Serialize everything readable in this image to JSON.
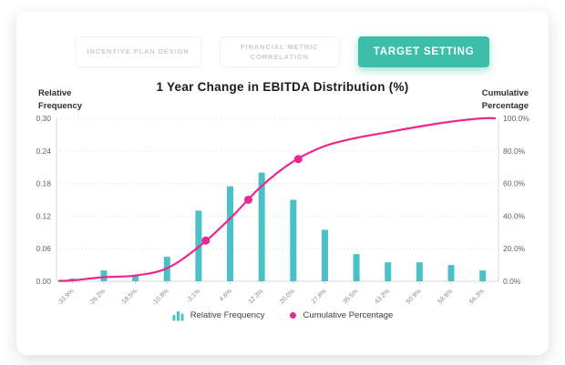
{
  "tabs": [
    {
      "label": "INCENTIVE PLAN DESIGN",
      "active": false
    },
    {
      "label": "FINANCIAL METRIC CORRELATION",
      "active": false
    },
    {
      "label": "TARGET SETTING",
      "active": true
    }
  ],
  "title": "1 Year Change in EBITDA Distribution (%)",
  "axis_titles": {
    "left_line1": "Relative",
    "left_line2": "Frequency",
    "right_line1": "Cumulative",
    "right_line2": "Percentage"
  },
  "legend": {
    "items": [
      {
        "icon": "bar-chart-icon",
        "label": "Relative Frequency"
      },
      {
        "icon": "dot-icon",
        "label": "Cumulative Percentage"
      }
    ]
  },
  "colors": {
    "bar": "#4bc0c5",
    "line": "#ec268f",
    "active_tab": "#3dbea9",
    "inactive_tab_text": "#c7ccd2",
    "axis": "#d6d7da",
    "grid": "#e4e5e9",
    "tick_text": "#5d6269",
    "xtick_text": "#82878f",
    "title_text": "#1a1b1e"
  },
  "chart_data": {
    "type": "bar+line (histogram with cumulative percentage)",
    "title": "1 Year Change in EBITDA Distribution (%)",
    "categories": [
      "-33.9%",
      "-26.2%",
      "-18.5%",
      "-10.8%",
      "-3.1%",
      "4.6%",
      "12.3%",
      "20.0%",
      "27.8%",
      "35.5%",
      "43.2%",
      "50.9%",
      "58.6%",
      "66.3%"
    ],
    "series": [
      {
        "name": "Relative Frequency",
        "type": "bar",
        "axis": "left",
        "values": [
          0.005,
          0.02,
          0.01,
          0.045,
          0.13,
          0.175,
          0.2,
          0.15,
          0.095,
          0.05,
          0.035,
          0.035,
          0.03,
          0.02
        ]
      },
      {
        "name": "Cumulative Percentage",
        "type": "line",
        "axis": "right",
        "values_percent": [
          0.5,
          2.5,
          3.5,
          8,
          21,
          38.5,
          58.5,
          73.5,
          83,
          88,
          91.5,
          95,
          98,
          100
        ],
        "highlight_markers_percent": [
          25,
          50,
          75
        ]
      }
    ],
    "left_axis": {
      "label": "Relative Frequency",
      "ticks": [
        "0.30",
        "0.24",
        "0.18",
        "0.12",
        "0.06",
        "0.00"
      ],
      "min": 0,
      "max": 0.3
    },
    "right_axis": {
      "label": "Cumulative Percentage",
      "ticks": [
        "100.0%",
        "80.0%",
        "60.0%",
        "40.0%",
        "20.0%",
        "0.0%"
      ],
      "min": 0,
      "max": 100
    },
    "grid": "horizontal dotted",
    "legend_position": "bottom"
  }
}
